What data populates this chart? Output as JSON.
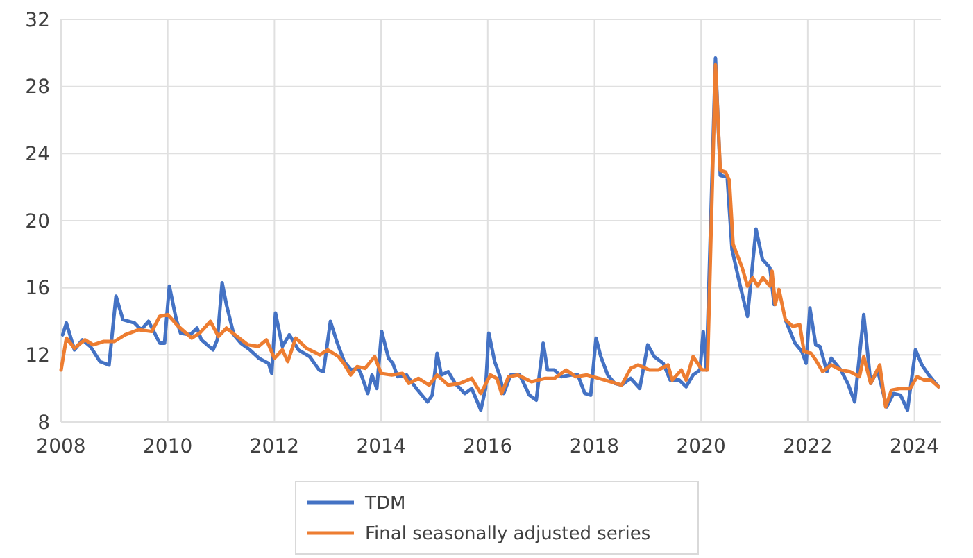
{
  "chart_data": {
    "type": "line",
    "xlim": [
      2008,
      2024.5
    ],
    "xticks": [
      2008,
      2010,
      2012,
      2014,
      2016,
      2018,
      2020,
      2022,
      2024
    ],
    "ylim": [
      8,
      32
    ],
    "yticks": [
      8,
      12,
      16,
      20,
      24,
      28,
      32
    ],
    "grid": true,
    "legend": "bottom",
    "line_style": "solid",
    "marker": "none",
    "series": [
      {
        "name": "TDM",
        "color": "#4472c4",
        "x": [
          2008.03,
          2008.1,
          2008.25,
          2008.4,
          2008.55,
          2008.73,
          2008.9,
          2009.03,
          2009.16,
          2009.38,
          2009.5,
          2009.64,
          2009.85,
          2009.94,
          2010.03,
          2010.16,
          2010.24,
          2010.42,
          2010.55,
          2010.63,
          2010.85,
          2010.93,
          2011.02,
          2011.1,
          2011.24,
          2011.37,
          2011.54,
          2011.71,
          2011.89,
          2011.95,
          2012.02,
          2012.15,
          2012.28,
          2012.45,
          2012.66,
          2012.84,
          2012.92,
          2013.05,
          2013.18,
          2013.31,
          2013.44,
          2013.57,
          2013.62,
          2013.75,
          2013.83,
          2013.92,
          2014.01,
          2014.14,
          2014.22,
          2014.31,
          2014.48,
          2014.66,
          2014.87,
          2014.96,
          2015.05,
          2015.13,
          2015.26,
          2015.39,
          2015.57,
          2015.7,
          2015.87,
          2015.96,
          2016.02,
          2016.13,
          2016.22,
          2016.3,
          2016.43,
          2016.6,
          2016.78,
          2016.91,
          2017.04,
          2017.12,
          2017.25,
          2017.38,
          2017.56,
          2017.69,
          2017.82,
          2017.93,
          2018.03,
          2018.12,
          2018.25,
          2018.38,
          2018.51,
          2018.68,
          2018.85,
          2019.0,
          2019.12,
          2019.29,
          2019.42,
          2019.59,
          2019.72,
          2019.85,
          2019.98,
          2020.04,
          2020.1,
          2020.27,
          2020.36,
          2020.49,
          2020.58,
          2020.72,
          2020.87,
          2021.03,
          2021.15,
          2021.29,
          2021.37,
          2021.46,
          2021.58,
          2021.76,
          2021.89,
          2021.97,
          2022.04,
          2022.15,
          2022.23,
          2022.36,
          2022.44,
          2022.62,
          2022.75,
          2022.88,
          2023.05,
          2023.18,
          2023.31,
          2023.48,
          2023.61,
          2023.74,
          2023.87,
          2024.02,
          2024.14,
          2024.27,
          2024.45
        ],
        "values": [
          13.2,
          13.9,
          12.3,
          12.9,
          12.5,
          11.6,
          11.4,
          15.5,
          14.1,
          13.9,
          13.5,
          14.0,
          12.7,
          12.7,
          16.1,
          14.1,
          13.3,
          13.2,
          13.6,
          12.9,
          12.3,
          12.9,
          16.3,
          15.0,
          13.2,
          12.7,
          12.3,
          11.8,
          11.5,
          10.9,
          14.5,
          12.5,
          13.2,
          12.3,
          11.9,
          11.1,
          11.0,
          14.0,
          12.7,
          11.6,
          11.1,
          11.2,
          10.9,
          9.7,
          10.8,
          10.0,
          13.4,
          11.8,
          11.5,
          10.7,
          10.8,
          10.0,
          9.2,
          9.6,
          12.1,
          10.8,
          11.0,
          10.3,
          9.7,
          10.0,
          8.7,
          10.0,
          13.3,
          11.6,
          10.8,
          9.7,
          10.8,
          10.8,
          9.6,
          9.3,
          12.7,
          11.1,
          11.1,
          10.7,
          10.8,
          10.8,
          9.7,
          9.6,
          13.0,
          11.9,
          10.8,
          10.3,
          10.2,
          10.6,
          10.0,
          12.6,
          11.9,
          11.5,
          10.5,
          10.5,
          10.1,
          10.8,
          11.1,
          13.4,
          11.1,
          29.7,
          22.7,
          22.6,
          18.3,
          16.3,
          14.3,
          19.5,
          17.7,
          17.2,
          15.0,
          null,
          14.1,
          12.7,
          12.2,
          11.5,
          14.8,
          12.6,
          12.5,
          11.0,
          11.8,
          11.1,
          10.3,
          9.2,
          14.4,
          10.3,
          11.1,
          8.9,
          9.7,
          9.6,
          8.7,
          12.3,
          11.4,
          10.8,
          10.1
        ]
      },
      {
        "name": "Final seasonally adjusted series",
        "color": "#ed7d31",
        "x": [
          2008.0,
          2008.1,
          2008.25,
          2008.45,
          2008.6,
          2008.8,
          2009.0,
          2009.2,
          2009.45,
          2009.7,
          2009.85,
          2010.0,
          2010.2,
          2010.45,
          2010.6,
          2010.8,
          2010.95,
          2011.1,
          2011.3,
          2011.5,
          2011.7,
          2011.85,
          2012.0,
          2012.15,
          2012.25,
          2012.4,
          2012.6,
          2012.85,
          2013.0,
          2013.2,
          2013.3,
          2013.43,
          2013.55,
          2013.7,
          2013.88,
          2014.0,
          2014.2,
          2014.4,
          2014.52,
          2014.7,
          2014.9,
          2015.05,
          2015.26,
          2015.48,
          2015.7,
          2015.87,
          2016.05,
          2016.17,
          2016.26,
          2016.39,
          2016.56,
          2016.82,
          2017.08,
          2017.25,
          2017.47,
          2017.65,
          2017.86,
          2018.08,
          2018.3,
          2018.51,
          2018.68,
          2018.82,
          2019.03,
          2019.2,
          2019.38,
          2019.46,
          2019.63,
          2019.72,
          2019.85,
          2020.02,
          2020.12,
          2020.27,
          2020.36,
          2020.46,
          2020.53,
          2020.6,
          2020.77,
          2020.87,
          2020.97,
          2021.06,
          2021.16,
          2021.29,
          2021.33,
          2021.39,
          2021.46,
          2021.58,
          2021.72,
          2021.85,
          2021.93,
          2022.06,
          2022.15,
          2022.28,
          2022.44,
          2022.62,
          2022.79,
          2022.97,
          2023.05,
          2023.18,
          2023.35,
          2023.46,
          2023.57,
          2023.74,
          2023.92,
          2024.05,
          2024.18,
          2024.31,
          2024.45
        ],
        "values": [
          11.1,
          13.0,
          12.4,
          12.9,
          12.6,
          12.8,
          12.8,
          13.2,
          13.5,
          13.4,
          14.3,
          14.4,
          13.7,
          13.0,
          13.3,
          14.0,
          13.1,
          13.6,
          13.1,
          12.6,
          12.5,
          12.9,
          11.8,
          12.3,
          11.6,
          13.0,
          12.4,
          12.0,
          12.3,
          11.9,
          11.5,
          10.8,
          11.3,
          11.2,
          11.9,
          10.9,
          10.8,
          10.9,
          10.3,
          10.6,
          10.2,
          10.8,
          10.2,
          10.3,
          10.6,
          9.7,
          10.8,
          10.6,
          9.7,
          10.7,
          10.8,
          10.4,
          10.6,
          10.6,
          11.1,
          10.7,
          10.8,
          10.6,
          10.4,
          10.2,
          11.2,
          11.4,
          11.1,
          11.1,
          11.4,
          10.5,
          11.1,
          10.5,
          11.9,
          11.1,
          11.1,
          29.3,
          23.0,
          22.9,
          22.4,
          18.6,
          17.2,
          16.1,
          16.6,
          16.1,
          16.6,
          16.1,
          17.0,
          15.0,
          15.9,
          14.1,
          13.7,
          13.8,
          12.2,
          12.1,
          11.7,
          11.0,
          11.4,
          11.1,
          11.0,
          10.7,
          11.9,
          10.3,
          11.4,
          8.9,
          9.9,
          10.0,
          10.0,
          10.7,
          10.5,
          10.5,
          10.1
        ]
      }
    ]
  }
}
